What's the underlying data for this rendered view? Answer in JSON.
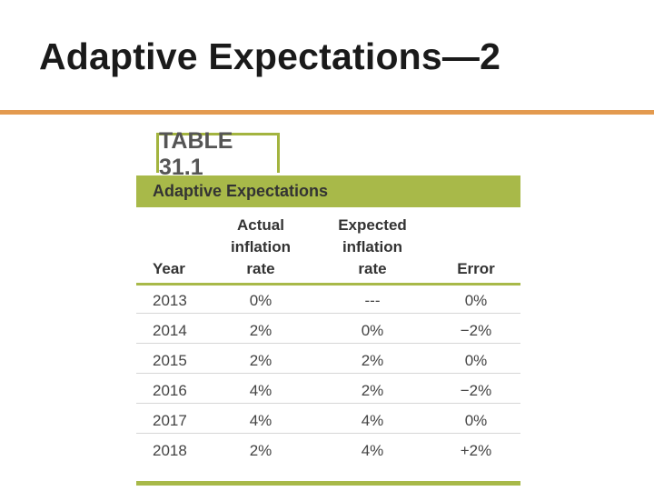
{
  "slide": {
    "title": "Adaptive Expectations—2"
  },
  "table": {
    "label": "TABLE 31.1",
    "caption": "Adaptive Expectations",
    "headers": {
      "year": "Year",
      "actual_line1": "Actual",
      "actual_line2": "inflation",
      "actual_line3": "rate",
      "expected_line1": "Expected",
      "expected_line2": "inflation",
      "expected_line3": "rate",
      "error": "Error"
    },
    "rows": [
      {
        "year": "2013",
        "actual": "0%",
        "expected": "---",
        "error": "0%"
      },
      {
        "year": "2014",
        "actual": "2%",
        "expected": "0%",
        "error": "−2%"
      },
      {
        "year": "2015",
        "actual": "2%",
        "expected": "2%",
        "error": "0%"
      },
      {
        "year": "2016",
        "actual": "4%",
        "expected": "2%",
        "error": "−2%"
      },
      {
        "year": "2017",
        "actual": "4%",
        "expected": "4%",
        "error": "0%"
      },
      {
        "year": "2018",
        "actual": "2%",
        "expected": "4%",
        "error": "+2%"
      }
    ]
  },
  "colors": {
    "accent_orange": "#e39a4f",
    "table_green": "#a8b949"
  }
}
